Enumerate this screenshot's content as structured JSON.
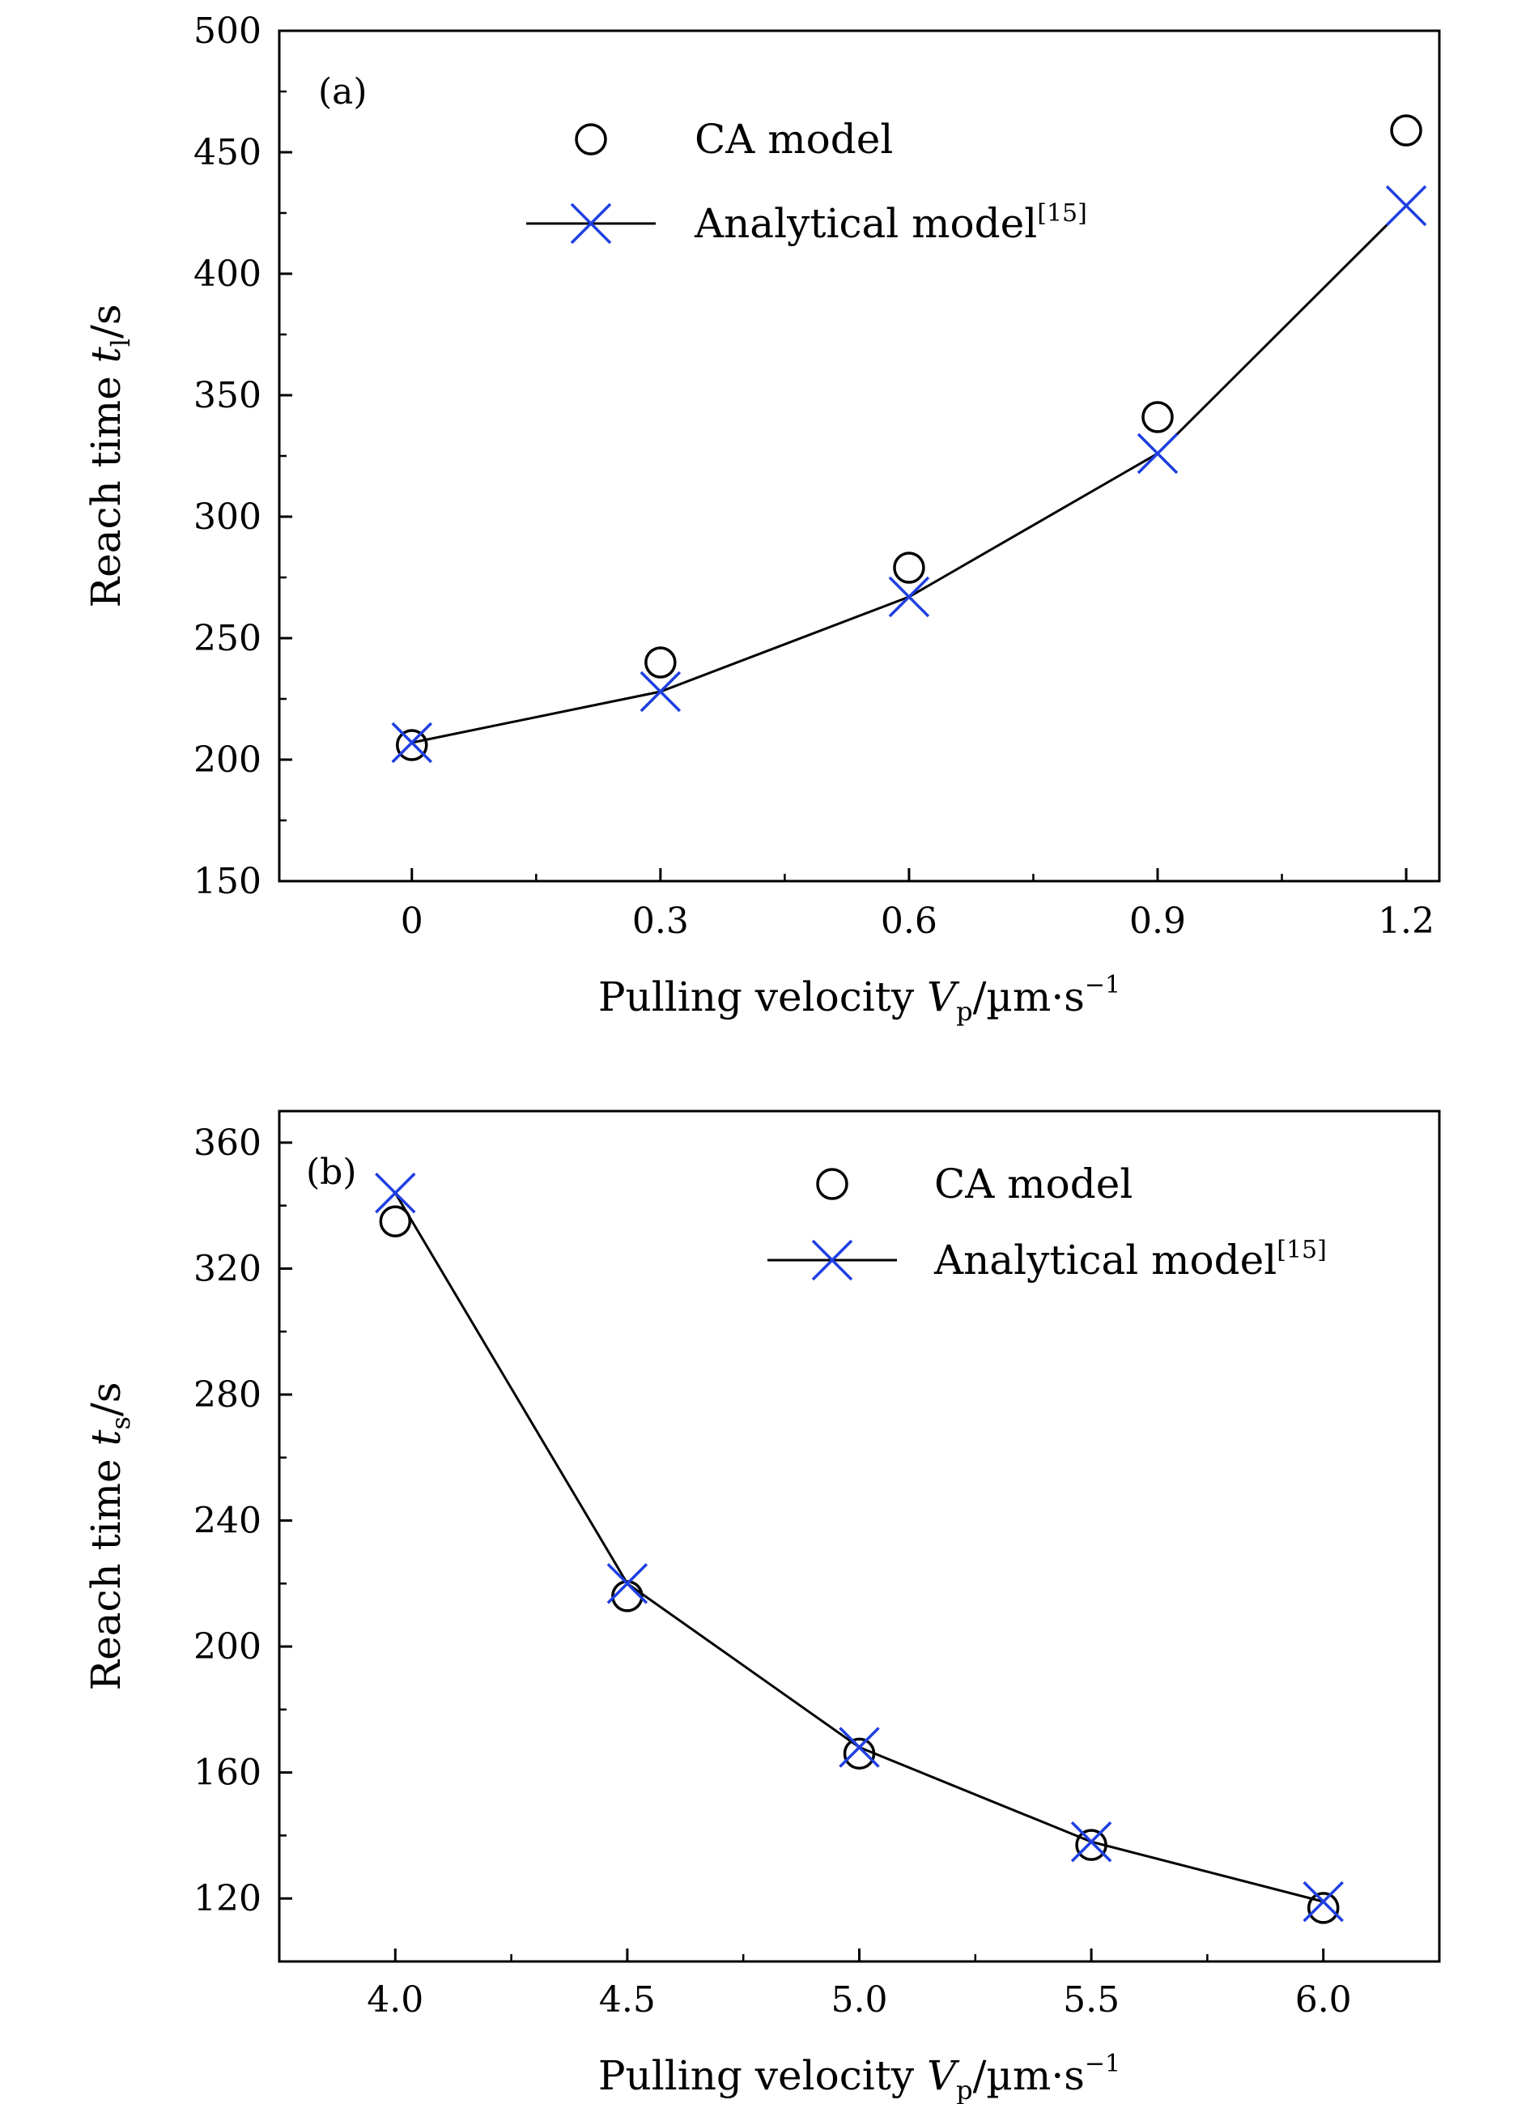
{
  "colors": {
    "analytical": "#1f3fe0",
    "ca": "#000000",
    "line": "#000000"
  },
  "chart_data": [
    {
      "type": "scatter",
      "panel_label": "(a)",
      "xlabel": {
        "prefix": "Pulling velocity ",
        "var": "V",
        "sub": "p",
        "unit": "/µm·s",
        "exp": "−1"
      },
      "ylabel": {
        "prefix": "Reach time ",
        "var": "t",
        "sub": "l",
        "unit": "/s"
      },
      "xlim": [
        -0.16,
        1.24
      ],
      "ylim": [
        150,
        500
      ],
      "xticks": [
        0,
        0.3,
        0.6,
        0.9,
        1.2
      ],
      "xtick_labels": [
        "0",
        "0.3",
        "0.6",
        "0.9",
        "1.2"
      ],
      "xminor": [
        0.15,
        0.45,
        0.75,
        1.05
      ],
      "yticks": [
        150,
        200,
        250,
        300,
        350,
        400,
        450,
        500
      ],
      "ytick_labels": [
        "150",
        "200",
        "250",
        "300",
        "350",
        "400",
        "450",
        "500"
      ],
      "yminor": [
        175,
        225,
        275,
        325,
        375,
        425,
        475
      ],
      "legend_position": "top-center",
      "series": [
        {
          "name": "CA model",
          "marker": "circle",
          "line": false,
          "x": [
            0,
            0.3,
            0.6,
            0.9,
            1.2
          ],
          "y": [
            206,
            240,
            279,
            341,
            459
          ]
        },
        {
          "name": "Analytical model",
          "name_sup": "[15]",
          "marker": "x",
          "line": true,
          "x": [
            0,
            0.3,
            0.6,
            0.9,
            1.2
          ],
          "y": [
            207,
            228,
            267,
            326,
            428
          ]
        }
      ]
    },
    {
      "type": "scatter",
      "panel_label": "(b)",
      "xlabel": {
        "prefix": "Pulling velocity ",
        "var": "V",
        "sub": "p",
        "unit": "/µm·s",
        "exp": "−1"
      },
      "ylabel": {
        "prefix": "Reach time ",
        "var": "t",
        "sub": "s",
        "unit": "/s"
      },
      "xlim": [
        3.75,
        6.25
      ],
      "ylim": [
        100,
        370
      ],
      "xticks": [
        4.0,
        4.5,
        5.0,
        5.5,
        6.0
      ],
      "xtick_labels": [
        "4.0",
        "4.5",
        "5.0",
        "5.5",
        "6.0"
      ],
      "xminor": [
        4.25,
        4.75,
        5.25,
        5.75
      ],
      "yticks": [
        120,
        160,
        200,
        240,
        280,
        320,
        360
      ],
      "ytick_labels": [
        "120",
        "160",
        "200",
        "240",
        "280",
        "320",
        "360"
      ],
      "yminor": [
        140,
        180,
        220,
        260,
        300,
        340
      ],
      "legend_position": "top-right",
      "series": [
        {
          "name": "CA model",
          "marker": "circle",
          "line": false,
          "x": [
            4.0,
            4.5,
            5.0,
            5.5,
            6.0
          ],
          "y": [
            335,
            216,
            166,
            137,
            117
          ]
        },
        {
          "name": "Analytical model",
          "name_sup": "[15]",
          "marker": "x",
          "line": true,
          "x": [
            4.0,
            4.5,
            5.0,
            5.5,
            6.0
          ],
          "y": [
            344,
            220,
            168,
            138,
            119
          ]
        }
      ]
    }
  ]
}
